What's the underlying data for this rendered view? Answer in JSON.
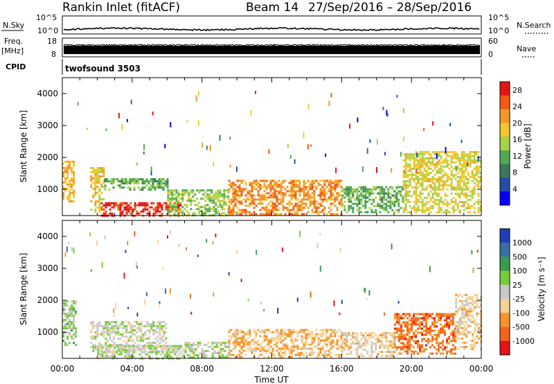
{
  "header": {
    "station": "Rankin Inlet (fitACF)",
    "beam": "Beam 14",
    "date_range": "27/Sep/2016 – 28/Sep/2016"
  },
  "status_panel": {
    "nsky_label": "N.Sky",
    "nsearch_label": "N.Search",
    "freq_label_top": "Freq.",
    "freq_label_unit": "[MHz]",
    "nave_label": "Nave",
    "cpid_label": "CPID",
    "cpid_value": "twofsound 3503",
    "noise_ticks_left": [
      "10^5",
      "10^0"
    ],
    "noise_ticks_right": [
      "10^5",
      "10^0"
    ],
    "freq_ticks": [
      "18",
      "8"
    ],
    "nave_ticks": [
      "60",
      "0"
    ]
  },
  "colors": {
    "power_scale": [
      "#0000ff",
      "#1f4fa8",
      "#3a7a5a",
      "#4faa4f",
      "#a8d24a",
      "#f2c82a",
      "#f5962a",
      "#f25a14",
      "#e61414"
    ],
    "velocity_scale": [
      "#1e40b4",
      "#3a70a0",
      "#3c9a50",
      "#78cc3c",
      "#c8c8c8",
      "#f5d296",
      "#f5962a",
      "#f5641e",
      "#e61414"
    ]
  },
  "chart_data": [
    {
      "type": "heatmap",
      "title": "Power",
      "xlabel": "Time UT",
      "ylabel": "Slant Range [km]",
      "x_ticks": [
        "00:00",
        "04:00",
        "08:00",
        "12:00",
        "16:00",
        "20:00",
        "00:00"
      ],
      "x_range_hours": [
        0,
        24
      ],
      "y_ticks": [
        1000,
        2000,
        3000,
        4000
      ],
      "ylim": [
        180,
        4500
      ],
      "colorbar": {
        "label": "Power [dB]",
        "ticks": [
          4,
          8,
          12,
          16,
          20,
          24,
          28
        ],
        "range": [
          0,
          30
        ]
      },
      "echo_regions": [
        {
          "t0": 0.0,
          "t1": 0.7,
          "r0": 600,
          "r1": 1900,
          "value": 20
        },
        {
          "t0": 1.6,
          "t1": 2.4,
          "r0": 300,
          "r1": 1700,
          "value": 18
        },
        {
          "t0": 2.2,
          "t1": 6.8,
          "r0": 200,
          "r1": 600,
          "value": 27
        },
        {
          "t0": 2.4,
          "t1": 6.0,
          "r0": 1000,
          "r1": 1350,
          "value": 12
        },
        {
          "t0": 6.0,
          "t1": 9.5,
          "r0": 200,
          "r1": 1000,
          "value": 14
        },
        {
          "t0": 9.5,
          "t1": 16.0,
          "r0": 200,
          "r1": 1300,
          "value": 22
        },
        {
          "t0": 16.0,
          "t1": 19.5,
          "r0": 300,
          "r1": 1100,
          "value": 12
        },
        {
          "t0": 19.5,
          "t1": 24.0,
          "r0": 300,
          "r1": 2200,
          "value": 17
        }
      ]
    },
    {
      "type": "heatmap",
      "title": "Velocity",
      "xlabel": "Time UT",
      "ylabel": "Slant Range [km]",
      "x_ticks": [
        "00:00",
        "04:00",
        "08:00",
        "12:00",
        "16:00",
        "20:00",
        "00:00"
      ],
      "x_range_hours": [
        0,
        24
      ],
      "y_ticks": [
        1000,
        2000,
        3000,
        4000
      ],
      "ylim": [
        180,
        4500
      ],
      "colorbar": {
        "label": "Velocity [m s⁻¹]",
        "ticks": [
          "1000",
          "500",
          "100",
          "25",
          "-25",
          "-100",
          "-500",
          "-1000"
        ],
        "range": [
          -1000,
          1000
        ]
      },
      "echo_regions": [
        {
          "t0": 0.0,
          "t1": 0.8,
          "r0": 600,
          "r1": 2000,
          "value": 150
        },
        {
          "t0": 1.6,
          "t1": 6.0,
          "r0": 400,
          "r1": 1350,
          "value": 0
        },
        {
          "t0": 2.0,
          "t1": 7.0,
          "r0": 200,
          "r1": 600,
          "value": 60
        },
        {
          "t0": 7.0,
          "t1": 9.5,
          "r0": 200,
          "r1": 700,
          "value": 40
        },
        {
          "t0": 9.5,
          "t1": 16.0,
          "r0": 250,
          "r1": 1100,
          "value": -300
        },
        {
          "t0": 16.0,
          "t1": 19.0,
          "r0": 250,
          "r1": 1000,
          "value": -200
        },
        {
          "t0": 19.0,
          "t1": 22.5,
          "r0": 300,
          "r1": 1600,
          "value": -600
        },
        {
          "t0": 22.5,
          "t1": 24.0,
          "r0": 500,
          "r1": 2200,
          "value": -200
        }
      ]
    }
  ]
}
